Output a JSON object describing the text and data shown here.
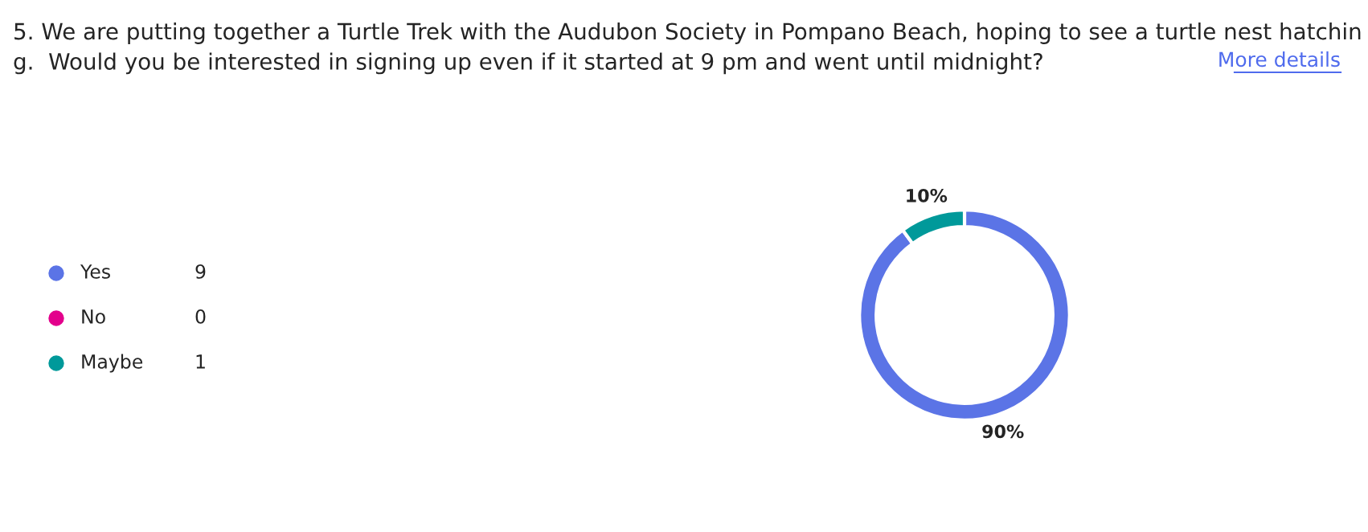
{
  "chart_data": {
    "type": "donut",
    "title": "5. We are putting together a Turtle Trek with the Audubon Society in Pompano Beach, hoping to see a turtle nest hatchin\ng.  Would you be interested in signing up even if it started at 9 pm and went until midnight?",
    "categories": [
      "Yes",
      "No",
      "Maybe"
    ],
    "values": [
      90,
      0,
      10
    ],
    "colors": [
      "#5b74e6",
      "#e3008c",
      "#00999a"
    ],
    "value_labels": [
      "90%",
      null,
      "10%"
    ],
    "legend": "left",
    "annotations": [
      "More details",
      {
        "text": "9",
        "x": "Yes"
      },
      {
        "text": "0",
        "x": "No"
      },
      {
        "text": "1",
        "x": "Maybe"
      }
    ]
  }
}
